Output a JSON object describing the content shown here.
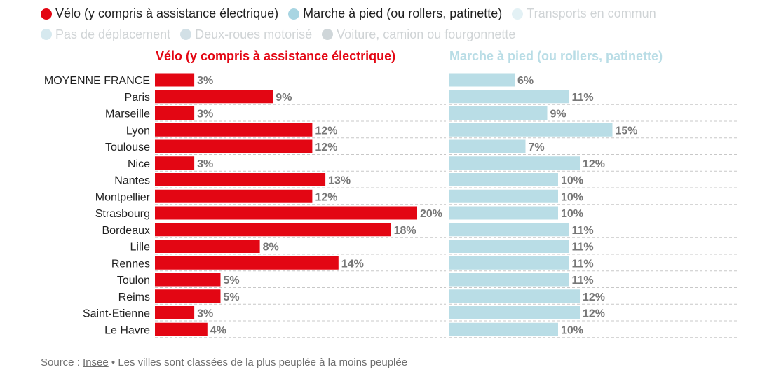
{
  "legend": [
    {
      "label": "Vélo (y compris à assistance électrique)",
      "color": "#e30613",
      "active": true
    },
    {
      "label": "Marche à pied (ou rollers, patinette)",
      "color": "#a8d5e2",
      "active": true
    },
    {
      "label": "Transports en commun",
      "color": "#e3f1f5",
      "active": false
    },
    {
      "label": "Pas de déplacement",
      "color": "#d6e9ef",
      "active": false
    },
    {
      "label": "Deux-roues motorisé",
      "color": "#d2e0e6",
      "active": false
    },
    {
      "label": "Voiture, camion ou fourgonnette",
      "color": "#cfd6d9",
      "active": false
    }
  ],
  "chart_data": {
    "type": "bar",
    "orientation": "horizontal",
    "categories": [
      "MOYENNE FRANCE",
      "Paris",
      "Marseille",
      "Lyon",
      "Toulouse",
      "Nice",
      "Nantes",
      "Montpellier",
      "Strasbourg",
      "Bordeaux",
      "Lille",
      "Rennes",
      "Toulon",
      "Reims",
      "Saint-Etienne",
      "Le Havre"
    ],
    "series": [
      {
        "name": "Vélo (y compris à assistance électrique)",
        "color": "#e30613",
        "values": [
          3,
          9,
          3,
          12,
          12,
          3,
          13,
          12,
          20,
          18,
          8,
          14,
          5,
          5,
          3,
          4
        ]
      },
      {
        "name": "Marche à pied (ou rollers, patinette)",
        "color": "#b9dde6",
        "values": [
          6,
          11,
          9,
          15,
          7,
          12,
          10,
          10,
          10,
          11,
          11,
          11,
          11,
          12,
          12,
          10
        ]
      }
    ],
    "value_suffix": "%",
    "label_color": "#777777",
    "grid": "dashed"
  },
  "source": {
    "prefix": "Source : ",
    "link": "Insee",
    "note": " • Les villes sont classées de la plus peuplée à la moins peuplée"
  }
}
